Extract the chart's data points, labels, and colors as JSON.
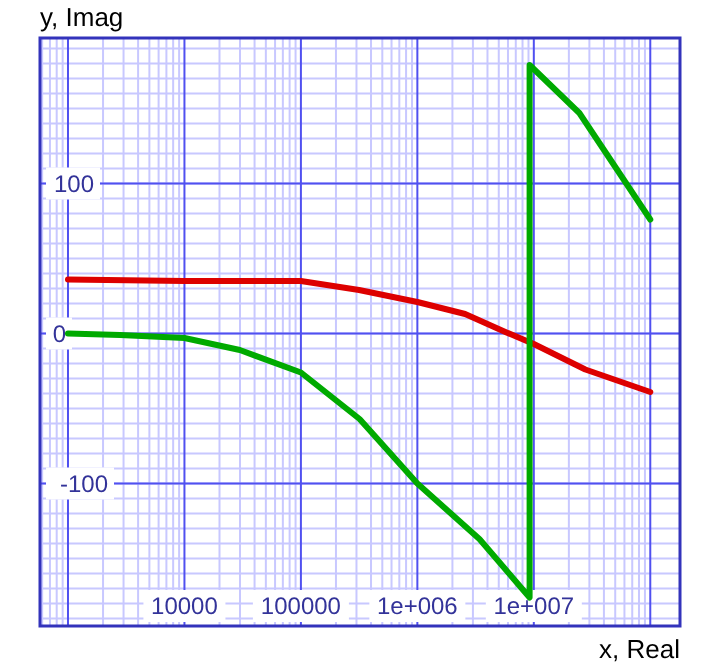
{
  "chart_data": {
    "type": "line",
    "xlabel": "x, Real",
    "ylabel": "y, Imag",
    "log": "x",
    "grid": true,
    "marker": "none",
    "line_style": "solid",
    "xlim": [
      575,
      180000000
    ],
    "ylim": [
      -195,
      197
    ],
    "xticks": [
      {
        "value": 1000,
        "label": null
      },
      10000,
      100000,
      {
        "value": 1000000,
        "label": "1e+006"
      },
      {
        "value": 10000000,
        "label": "1e+007"
      },
      {
        "value": 100000000,
        "label": null
      }
    ],
    "yticks": [
      -100,
      0,
      100
    ],
    "series": [
      {
        "color": "#dd0000",
        "x": [
          1000,
          10000,
          100000,
          316000,
          1000000,
          2570000,
          5700000,
          10000000,
          27700000,
          100000000
        ],
        "values": [
          36,
          35,
          35,
          29,
          21,
          13,
          1,
          -7,
          -24,
          -39
        ]
      },
      {
        "color": "#00aa00",
        "x": [
          1000,
          2800,
          10000,
          29900,
          100000,
          319000,
          1000000,
          3410000,
          9200000,
          9200000,
          24600000,
          100000000
        ],
        "values": [
          0,
          -1,
          -3,
          -11,
          -26,
          -57,
          -100,
          -137,
          -176,
          179,
          147,
          76
        ]
      }
    ]
  }
}
